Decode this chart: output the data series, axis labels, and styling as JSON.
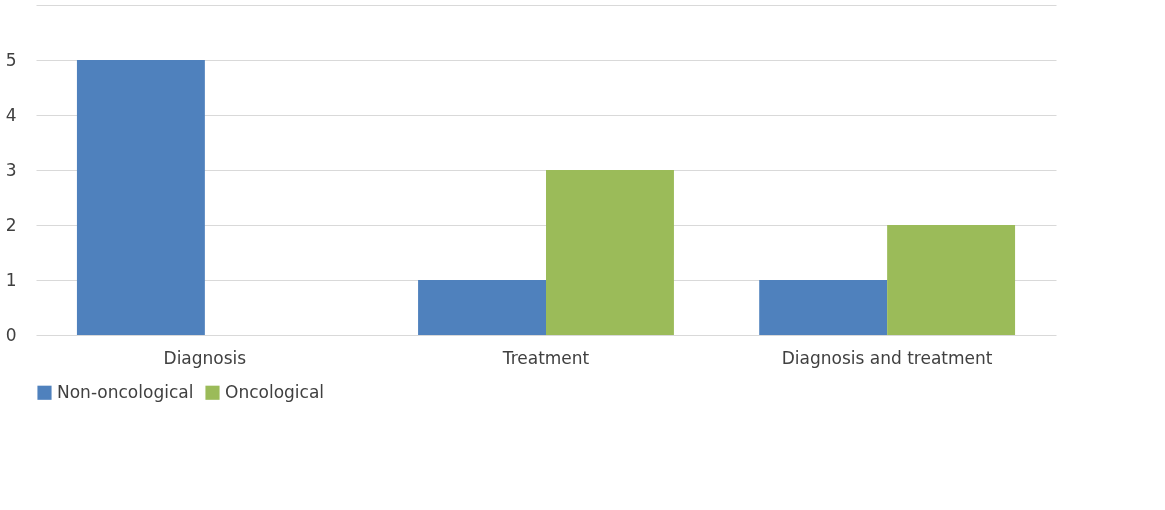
{
  "chart_data": {
    "type": "bar",
    "categories": [
      "Diagnosis",
      "Treatment",
      "Diagnosis and treatment"
    ],
    "series": [
      {
        "name": "Non-oncological",
        "color": "#4f81bd",
        "values": [
          5,
          1,
          1
        ]
      },
      {
        "name": "Oncological",
        "color": "#9bbb59",
        "values": [
          null,
          3,
          2
        ]
      }
    ],
    "ylim": [
      0,
      6
    ],
    "yticks": [
      0,
      1,
      2,
      3,
      4,
      5,
      {
        "value": 6,
        "label": null
      }
    ],
    "grid": "y",
    "legend": "bottom"
  }
}
